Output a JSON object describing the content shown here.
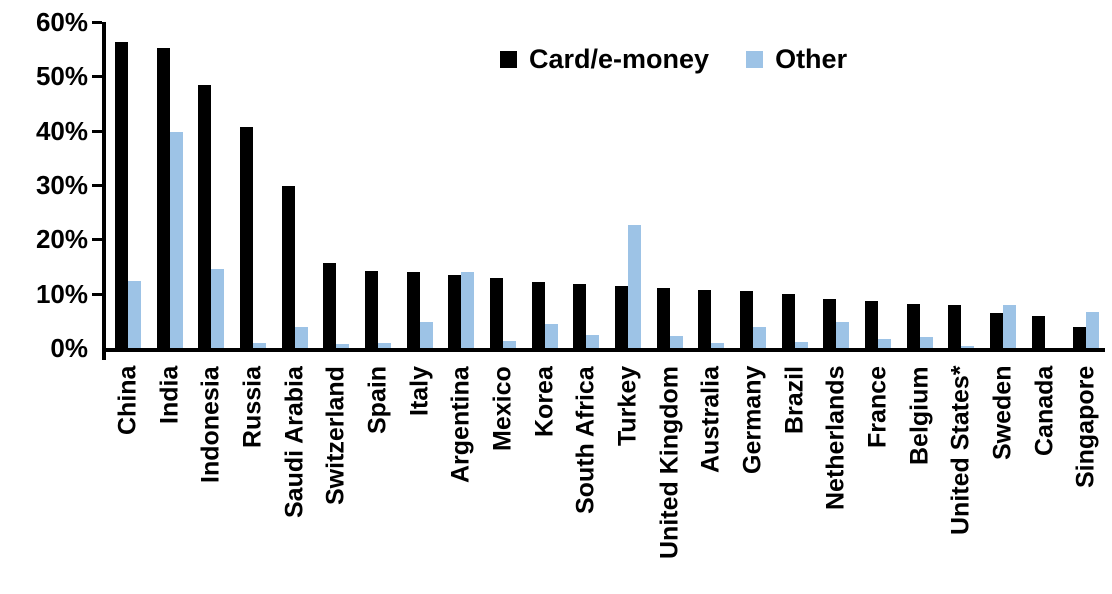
{
  "chart_data": {
    "type": "bar",
    "title": "",
    "xlabel": "",
    "ylabel": "",
    "ylim": [
      0,
      60
    ],
    "grid": false,
    "legend_position": "top",
    "y_tick_labels": [
      "60%",
      "50%",
      "40%",
      "30%",
      "20%",
      "10%",
      "0%"
    ],
    "y_tick_values": [
      60,
      50,
      40,
      30,
      20,
      10,
      0
    ],
    "categories": [
      "China",
      "India",
      "Indonesia",
      "Russia",
      "Saudi Arabia",
      "Switzerland",
      "Spain",
      "Italy",
      "Argentina",
      "Mexico",
      "Korea",
      "South Africa",
      "Turkey",
      "United Kingdom",
      "Australia",
      "Germany",
      "Brazil",
      "Netherlands",
      "France",
      "Belgium",
      "United States*",
      "Sweden",
      "Canada",
      "Singapore"
    ],
    "series": [
      {
        "name": "Card/e-money",
        "color": "#000000",
        "values": [
          56.4,
          55.2,
          48.4,
          40.6,
          29.9,
          15.6,
          14.2,
          14.0,
          13.4,
          12.9,
          12.2,
          11.8,
          11.5,
          11.0,
          10.7,
          10.5,
          9.9,
          9.1,
          8.7,
          8.1,
          8.0,
          6.5,
          5.9,
          3.8
        ]
      },
      {
        "name": "Other",
        "color": "#9DC3E6",
        "values": [
          12.3,
          39.8,
          14.5,
          1.0,
          3.9,
          0.7,
          1.0,
          4.7,
          13.9,
          1.3,
          4.5,
          2.4,
          22.6,
          2.3,
          1.0,
          3.9,
          1.1,
          4.7,
          1.6,
          2.1,
          0.3,
          8.0,
          0,
          6.6
        ]
      }
    ]
  }
}
